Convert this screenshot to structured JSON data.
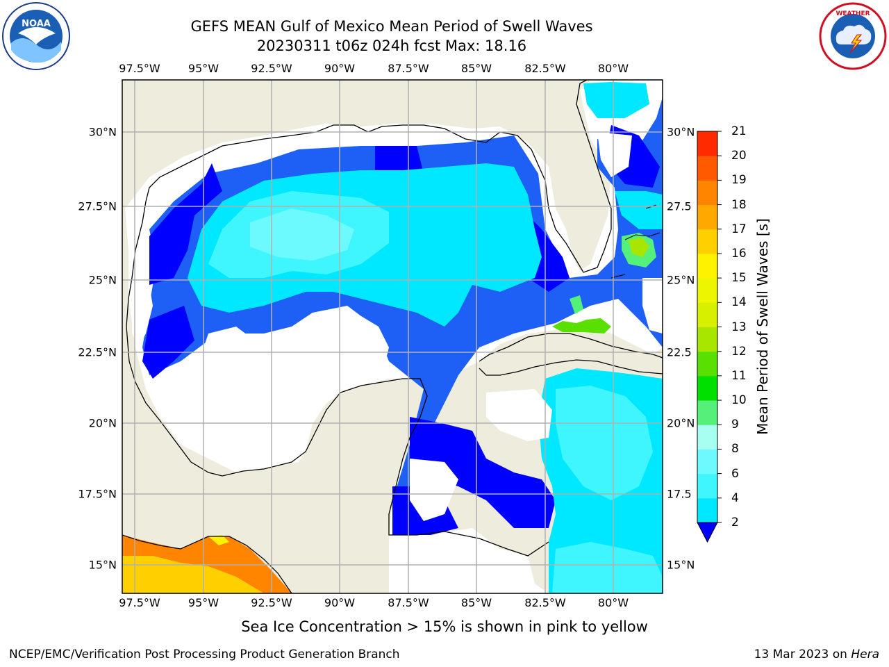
{
  "title": {
    "line1": "GEFS MEAN Gulf of Mexico Mean Period of Swell Waves",
    "line2": "20230311 t06z 024h fcst   Max: 18.16"
  },
  "footnote": "Sea Ice Concentration > 15% is shown in pink to yellow",
  "credit": {
    "left": "NCEP/EMC/Verification Post Processing Product Generation Branch",
    "right_prefix": "13 Mar 2023 on ",
    "right_host": "Hera"
  },
  "logos": {
    "noaa": {
      "text": "NOAA",
      "ring_text": "NATIONAL OCEANIC AND ATMOSPHERIC ADMINISTRATION · U.S. DEPARTMENT OF COMMERCE"
    },
    "nws": {
      "ring_text": "NATIONAL WEATHER SERVICE"
    }
  },
  "map": {
    "lon_ticks": [
      "97.5°W",
      "95°W",
      "92.5°W",
      "90°W",
      "87.5°W",
      "85°W",
      "82.5°W",
      "80°W"
    ],
    "lat_ticks_left": [
      "30°N",
      "27.5°N",
      "25°N",
      "22.5°N",
      "20°N",
      "17.5°N",
      "15°N"
    ],
    "lat_ticks_right": [
      "30°N",
      "27.5",
      "25°N",
      "22.5",
      "20°N",
      "17.5",
      "15°N"
    ],
    "colors": {
      "land": "#eeecdc",
      "no_data": "#ffffff",
      "grid": "#b0b0b0"
    }
  },
  "colorbar": {
    "label": "Mean Period of Swell Waves [s]",
    "ticks": [
      "2",
      "4",
      "6",
      "8",
      "9",
      "10",
      "11",
      "12",
      "13",
      "14",
      "15",
      "16",
      "17",
      "18",
      "19",
      "20",
      "21"
    ],
    "colors": [
      "#1e5ff5",
      "#00e8ff",
      "#3ff6ff",
      "#6cfaff",
      "#a6fff0",
      "#55f07a",
      "#00e000",
      "#5ae000",
      "#a8e600",
      "#d6f000",
      "#eef500",
      "#fff200",
      "#ffd000",
      "#ffa900",
      "#ff8500",
      "#ff5a00",
      "#ff2a00",
      "#ff0000"
    ],
    "extend_color": "#0000ff"
  }
}
